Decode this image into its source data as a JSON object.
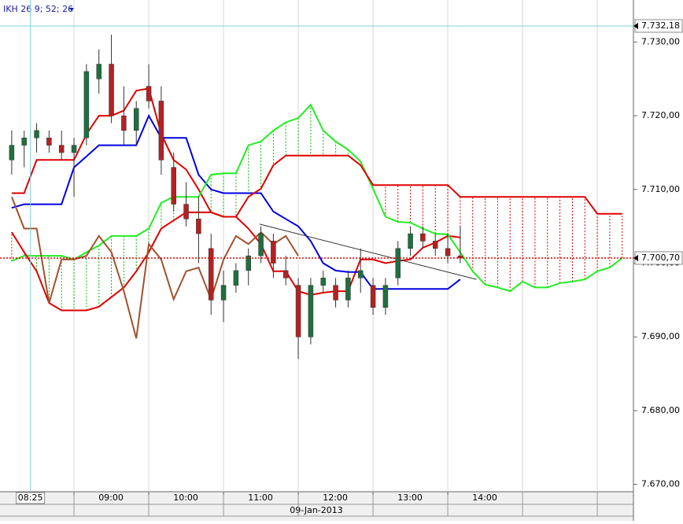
{
  "chart_data": {
    "type": "candlestick",
    "title": "IKH 26  9; 52; 26",
    "date_label": "09-Jan-2013",
    "x": [
      490,
      500,
      510,
      520,
      530,
      540,
      550,
      560,
      570,
      580,
      590,
      600,
      610,
      620,
      630,
      640,
      650,
      660,
      670,
      680,
      690,
      700,
      710,
      720,
      730,
      740,
      750,
      760,
      770,
      780,
      790,
      800,
      810,
      820,
      830,
      840,
      850,
      860,
      870,
      880,
      890,
      900,
      910,
      920,
      930,
      940,
      950,
      960,
      970,
      980
    ],
    "open": [
      7.714,
      7.716,
      7.717,
      7.717,
      7.716,
      7.715,
      7.717,
      7.725,
      7.727,
      7.72,
      7.718,
      7.724,
      7.722,
      7.713,
      7.708,
      7.706,
      7.702,
      7.695,
      7.697,
      7.699,
      7.701,
      7.703,
      7.699,
      7.697,
      7.69,
      7.697,
      7.697,
      7.695,
      7.698,
      7.697,
      7.694,
      7.698,
      7.702,
      7.704,
      7.703,
      7.702,
      7.701,
      null,
      null,
      null,
      null,
      null,
      null,
      null,
      null,
      null,
      null,
      null,
      null,
      null
    ],
    "high": [
      7.718,
      7.718,
      7.719,
      7.718,
      7.718,
      7.717,
      7.727,
      7.729,
      7.731,
      7.724,
      7.722,
      7.727,
      7.724,
      7.715,
      7.711,
      7.709,
      7.704,
      7.699,
      7.7,
      7.702,
      7.705,
      7.704,
      7.701,
      7.698,
      7.698,
      7.699,
      7.698,
      7.699,
      7.702,
      7.698,
      7.698,
      7.703,
      7.705,
      7.705,
      7.704,
      7.704,
      7.705,
      null,
      null,
      null,
      null,
      null,
      null,
      null,
      null,
      null,
      null,
      null,
      null,
      null
    ],
    "low": [
      7.712,
      7.713,
      7.715,
      7.715,
      7.714,
      7.709,
      7.716,
      7.723,
      7.719,
      7.716,
      7.716,
      7.721,
      7.712,
      7.707,
      7.705,
      7.7,
      7.693,
      7.692,
      7.696,
      7.697,
      7.7,
      7.698,
      7.697,
      7.687,
      7.689,
      7.696,
      7.694,
      7.694,
      7.696,
      7.693,
      7.693,
      7.697,
      7.701,
      7.702,
      7.701,
      7.7,
      7.7,
      null,
      null,
      null,
      null,
      null,
      null,
      null,
      null,
      null,
      null,
      null,
      null,
      null
    ],
    "close": [
      7.716,
      7.717,
      7.718,
      7.716,
      7.715,
      7.716,
      7.726,
      7.727,
      7.72,
      7.718,
      7.721,
      7.722,
      7.714,
      7.708,
      7.706,
      7.704,
      7.695,
      7.697,
      7.699,
      7.701,
      7.704,
      7.7,
      7.698,
      7.69,
      7.697,
      7.698,
      7.695,
      7.698,
      7.699,
      7.694,
      7.697,
      7.702,
      7.704,
      7.703,
      7.702,
      7.701,
      7.7007,
      null,
      null,
      null,
      null,
      null,
      null,
      null,
      null,
      null,
      null,
      null,
      null,
      null
    ],
    "up_color": "#1f6f3f",
    "down_color": "#b22222",
    "series": [
      {
        "color": "#e00000",
        "values": [
          7.7095,
          7.7095,
          7.714,
          7.714,
          7.714,
          7.714,
          7.7175,
          7.72,
          7.72,
          7.7207,
          7.7234,
          7.7237,
          7.7175,
          7.714,
          7.7127,
          7.71,
          7.7069,
          7.7063,
          7.7063,
          7.7047,
          7.7026,
          7.6989,
          7.6989,
          7.6962,
          7.6957,
          7.696,
          7.6962,
          7.6962,
          7.7005,
          7.7005,
          7.7,
          7.7003,
          7.7005,
          7.7021,
          7.7028,
          7.7037,
          7.7035,
          null,
          null,
          null,
          null,
          null,
          null,
          null,
          null,
          null,
          null,
          null,
          null,
          null
        ]
      },
      {
        "color": "#0000e0",
        "values": [
          7.7075,
          7.708,
          7.708,
          7.708,
          7.708,
          7.713,
          7.7145,
          7.716,
          7.716,
          7.716,
          7.716,
          7.72,
          7.717,
          7.717,
          7.717,
          7.712,
          7.71,
          7.7095,
          7.7095,
          7.7095,
          7.7095,
          7.707,
          7.706,
          7.705,
          7.703,
          7.7,
          7.699,
          7.6988,
          7.6988,
          7.6965,
          7.6965,
          7.6965,
          7.6965,
          7.6965,
          7.6965,
          7.6965,
          7.6978,
          null,
          null,
          null,
          null,
          null,
          null,
          null,
          null,
          null,
          null,
          null,
          null,
          null
        ]
      },
      {
        "color": "#22ee22",
        "values": [
          7.7003,
          7.701,
          7.701,
          7.701,
          7.701,
          7.7005,
          7.7015,
          7.7024,
          7.7037,
          7.7037,
          7.7037,
          7.7047,
          7.7082,
          7.709,
          7.709,
          7.709,
          7.712,
          7.7122,
          7.7122,
          7.716,
          7.7165,
          7.718,
          7.7191,
          7.7197,
          7.7215,
          7.718,
          7.7165,
          7.7154,
          7.7138,
          7.7101,
          7.7063,
          7.7056,
          7.7055,
          7.7047,
          7.704,
          7.7039,
          7.7015,
          7.6989,
          7.6971,
          7.6967,
          7.6962,
          7.6975,
          7.6967,
          7.6967,
          7.6973,
          7.6975,
          7.6978,
          7.6989,
          7.6994,
          7.7007
        ]
      },
      {
        "color": "#e00000",
        "values": [
          7.7042,
          7.7015,
          7.6989,
          7.6946,
          7.6936,
          7.6936,
          7.6936,
          7.6941,
          7.6954,
          7.6967,
          7.6989,
          7.7015,
          7.7047,
          7.7058,
          7.7069,
          7.7069,
          7.7069,
          7.7063,
          7.7063,
          7.709,
          7.7101,
          7.7133,
          7.7146,
          7.7146,
          7.7146,
          7.7146,
          7.7146,
          7.7146,
          7.7133,
          7.7106,
          7.7106,
          7.7106,
          7.7106,
          7.7106,
          7.7106,
          7.7106,
          7.709,
          7.709,
          7.709,
          7.709,
          7.709,
          7.709,
          7.709,
          7.709,
          7.709,
          7.709,
          7.709,
          7.7067,
          7.7067,
          7.7067
        ]
      },
      {
        "color": "#a0522d",
        "values": [
          7.709,
          7.7047,
          7.7047,
          7.6946,
          7.7005,
          7.7005,
          7.701,
          7.7037,
          7.7015,
          7.6962,
          7.6898,
          7.7026,
          7.7005,
          7.6951,
          7.6989,
          7.6994,
          7.6951,
          7.7005,
          7.7037,
          7.7026,
          7.7042,
          7.7026,
          7.7037,
          7.701,
          null,
          null,
          null,
          null,
          null,
          null,
          null,
          null,
          null,
          null,
          null,
          null,
          null,
          null,
          null,
          null,
          null,
          null,
          null,
          null,
          null,
          null,
          null,
          null,
          null,
          null
        ]
      }
    ],
    "cloud_up_color": "#00bb00",
    "cloud_down_color": "#dd0000",
    "trendline": {
      "x": [
        689,
        863
      ],
      "values": [
        7.7053,
        7.6978
      ],
      "color": "#333333"
    },
    "last_price": {
      "value": 7.7007,
      "label": "7.700,70",
      "color": "#dd0000"
    },
    "crosshair": {
      "x": {
        "value": 505,
        "label": "08:25"
      },
      "y": {
        "value": 7.73218,
        "label": "7.732,18"
      },
      "color": "#7fd0e0"
    },
    "xlim": [
      480.6,
      989
    ],
    "ylim": [
      7.669,
      7.7357
    ],
    "xticks": [
      {
        "value": 540,
        "label": "09:00"
      },
      {
        "value": 600,
        "label": "10:00"
      },
      {
        "value": 660,
        "label": "11:00"
      },
      {
        "value": 720,
        "label": "12:00"
      },
      {
        "value": 780,
        "label": "13:00"
      },
      {
        "value": 840,
        "label": "14:00"
      }
    ],
    "xgrid": [
      540,
      600,
      660,
      720,
      780,
      840,
      900,
      960
    ],
    "yticks": [
      {
        "value": 7.67,
        "label": "7.670,00"
      },
      {
        "value": 7.68,
        "label": "7.680,00"
      },
      {
        "value": 7.69,
        "label": "7.690,00"
      },
      {
        "value": 7.7,
        "label": "7.700,00"
      },
      {
        "value": 7.71,
        "label": "7.710,00"
      },
      {
        "value": 7.72,
        "label": "7.720,00"
      },
      {
        "value": 7.73,
        "label": "7.730,00"
      }
    ]
  }
}
